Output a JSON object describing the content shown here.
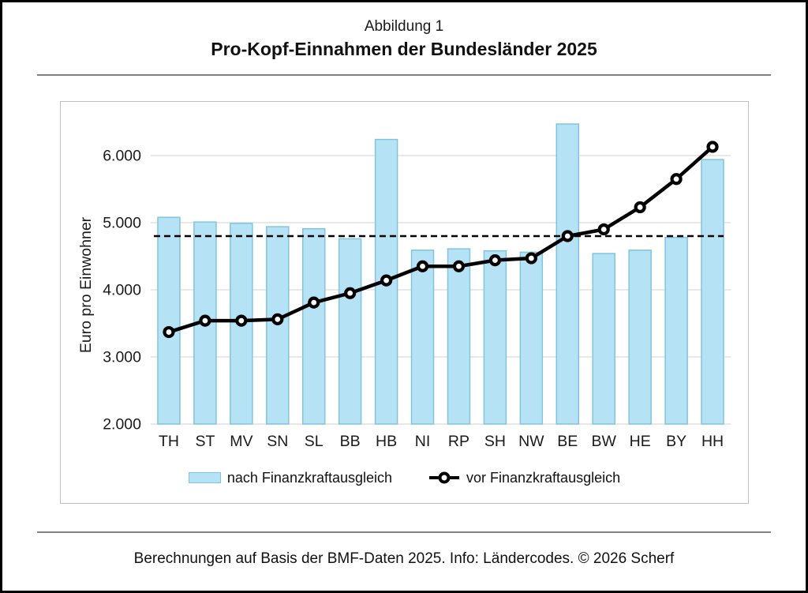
{
  "page": {
    "figure_label": "Abbildung 1",
    "title": "Pro-Kopf-Einnahmen der Bundesländer 2025",
    "footer": "Berechnungen auf Basis der BMF-Daten 2025. Info: Ländercodes. © 2026 Scherf"
  },
  "colors": {
    "bar_fill": "#b5e2f4",
    "bar_border": "#82c4db",
    "line": "#000000",
    "gridline": "#d9d9d9",
    "reference_line": "#000000",
    "frame_border": "#bfbfbf",
    "rule": "#808080"
  },
  "chart_data": {
    "type": "bar",
    "title": "Pro-Kopf-Einnahmen der Bundesländer 2025",
    "xlabel": "",
    "ylabel": "Euro pro Einwohner",
    "ylim": [
      2000,
      6500
    ],
    "yticks": [
      2000,
      3000,
      4000,
      5000,
      6000
    ],
    "ytick_labels": [
      "2.000",
      "3.000",
      "4.000",
      "5.000",
      "6.000"
    ],
    "grid": "horizontal",
    "legend_position": "bottom",
    "categories": [
      "TH",
      "ST",
      "MV",
      "SN",
      "SL",
      "BB",
      "HB",
      "NI",
      "RP",
      "SH",
      "NW",
      "BE",
      "BW",
      "HE",
      "BY",
      "HH"
    ],
    "series": [
      {
        "name": "nach Finanzkraftausgleich",
        "type": "bar",
        "values": [
          5080,
          5010,
          4990,
          4940,
          4910,
          4760,
          6240,
          4590,
          4610,
          4580,
          4560,
          6470,
          4540,
          4590,
          4780,
          5940
        ]
      },
      {
        "name": "vor Finanzkraftausgleich",
        "type": "line",
        "values": [
          3370,
          3540,
          3540,
          3560,
          3810,
          3950,
          4140,
          4350,
          4350,
          4440,
          4470,
          4800,
          4900,
          5230,
          5650,
          6130
        ]
      }
    ],
    "reference_line": {
      "value": 4800,
      "style": "dashed"
    }
  }
}
